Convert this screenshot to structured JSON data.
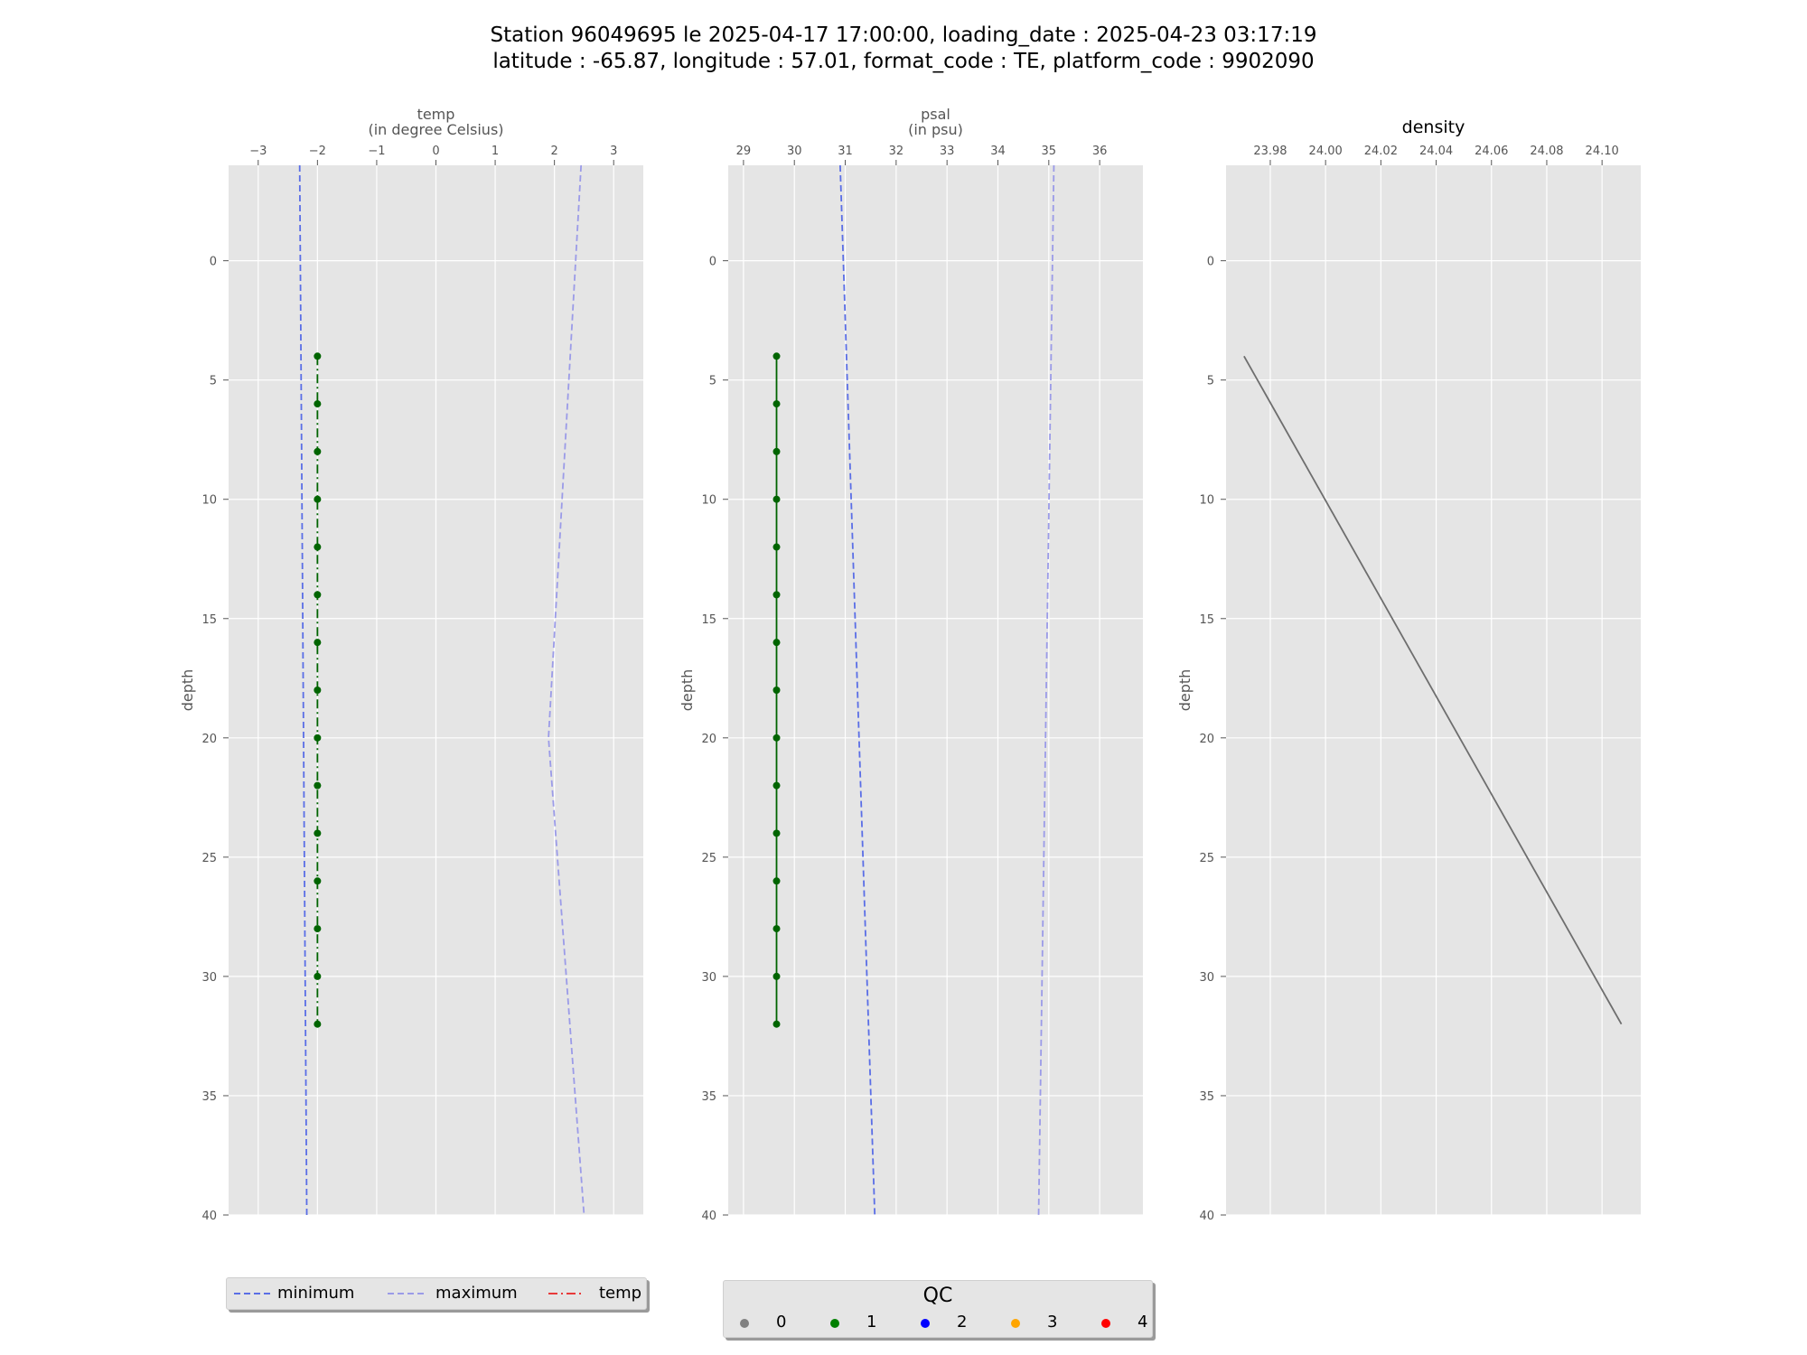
{
  "figure": {
    "title_line1": "Station 96049695 le 2025-04-17 17:00:00, loading_date : 2025-04-23 03:17:19",
    "title_line2": "latitude : -65.87, longitude : 57.01, format_code : TE, platform_code : 9902090"
  },
  "chart_data": [
    {
      "type": "line",
      "title": "temp",
      "xlabel": "(in degree Celsius)",
      "ylabel": "depth",
      "xlim": [
        -3.5,
        3.5
      ],
      "xticks": [
        -3,
        -2,
        -1,
        0,
        1,
        2,
        3
      ],
      "ylim": [
        40,
        -4
      ],
      "yticks": [
        0,
        5,
        10,
        15,
        20,
        25,
        30,
        35,
        40
      ],
      "background": "#e5e5e5",
      "grid": true,
      "series": [
        {
          "name": "minimum",
          "style": "dashed",
          "color": "#5a6ee6",
          "x": [
            -2.3,
            -2.18
          ],
          "y": [
            -4,
            40
          ]
        },
        {
          "name": "maximum",
          "style": "dashed",
          "color": "#9b9be8",
          "x": [
            2.45,
            1.9,
            2.5
          ],
          "y": [
            -4,
            20,
            40
          ]
        },
        {
          "name": "temp",
          "style": "dashdot",
          "color": "#006400",
          "markers": true,
          "x": [
            -2,
            -2,
            -2,
            -2,
            -2,
            -2,
            -2,
            -2,
            -2,
            -2,
            -2,
            -2,
            -2,
            -2,
            -2
          ],
          "y": [
            4,
            6,
            8,
            10,
            12,
            14,
            16,
            18,
            20,
            22,
            24,
            26,
            28,
            30,
            32
          ]
        }
      ]
    },
    {
      "type": "line",
      "title": "psal",
      "xlabel": "(in psu)",
      "ylabel": "depth",
      "xlim": [
        28.7,
        36.85
      ],
      "xticks": [
        29,
        30,
        31,
        32,
        33,
        34,
        35,
        36
      ],
      "ylim": [
        40,
        -4
      ],
      "yticks": [
        0,
        5,
        10,
        15,
        20,
        25,
        30,
        35,
        40
      ],
      "background": "#e5e5e5",
      "grid": true,
      "series": [
        {
          "name": "minimum",
          "style": "dashed",
          "color": "#5a6ee6",
          "x": [
            30.9,
            31.58
          ],
          "y": [
            -4,
            40
          ]
        },
        {
          "name": "maximum",
          "style": "dashed",
          "color": "#9b9be8",
          "x": [
            35.1,
            34.8
          ],
          "y": [
            -4,
            40
          ]
        },
        {
          "name": "psal",
          "style": "solid",
          "color": "#006400",
          "markers": true,
          "x": [
            29.65,
            29.65,
            29.65,
            29.65,
            29.65,
            29.65,
            29.65,
            29.65,
            29.65,
            29.65,
            29.65,
            29.65,
            29.65,
            29.65,
            29.65
          ],
          "y": [
            4,
            6,
            8,
            10,
            12,
            14,
            16,
            18,
            20,
            22,
            24,
            26,
            28,
            30,
            32
          ]
        }
      ]
    },
    {
      "type": "line",
      "title": "density",
      "xlabel": "",
      "ylabel": "depth",
      "xlim": [
        23.964,
        24.114
      ],
      "xticks": [
        23.98,
        24.0,
        24.02,
        24.04,
        24.06,
        24.08,
        24.1
      ],
      "xticklabels": [
        "23.98",
        "24.00",
        "24.02",
        "24.04",
        "24.06",
        "24.08",
        "24.10"
      ],
      "ylim": [
        40,
        -4
      ],
      "yticks": [
        0,
        5,
        10,
        15,
        20,
        25,
        30,
        35,
        40
      ],
      "background": "#e5e5e5",
      "grid": true,
      "series": [
        {
          "name": "density",
          "style": "solid",
          "color": "#6e6e6e",
          "x": [
            23.9705,
            24.107
          ],
          "y": [
            4,
            32
          ]
        }
      ]
    }
  ],
  "legend_lines": {
    "items": [
      {
        "label": "minimum",
        "color": "#5a6ee6",
        "style": "dashed"
      },
      {
        "label": "maximum",
        "color": "#9b9be8",
        "style": "dashed"
      },
      {
        "label": "temp",
        "color": "#e83a3a",
        "style": "dashdot"
      }
    ]
  },
  "legend_qc": {
    "title": "QC",
    "items": [
      {
        "label": "0",
        "color": "#808080"
      },
      {
        "label": "1",
        "color": "#008000"
      },
      {
        "label": "2",
        "color": "#0000ff"
      },
      {
        "label": "3",
        "color": "#ffa500"
      },
      {
        "label": "4",
        "color": "#ff0000"
      }
    ]
  }
}
